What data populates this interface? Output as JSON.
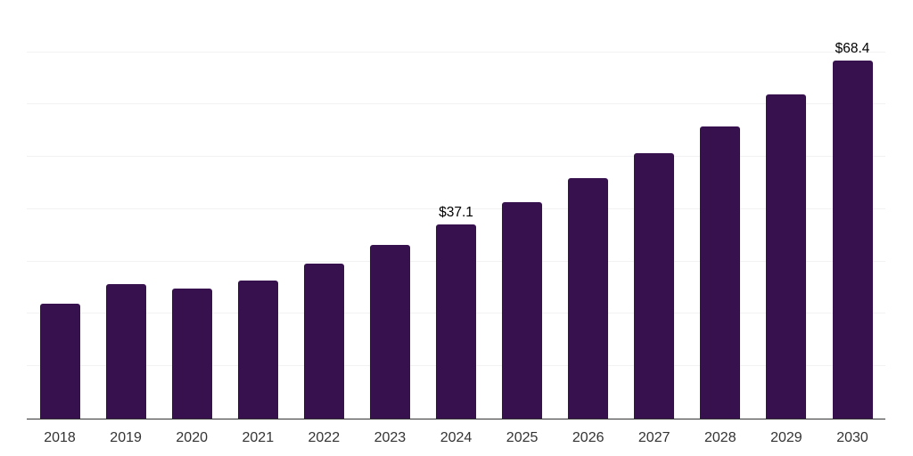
{
  "chart_data": {
    "type": "bar",
    "categories": [
      "2018",
      "2019",
      "2020",
      "2021",
      "2022",
      "2023",
      "2024",
      "2025",
      "2026",
      "2027",
      "2028",
      "2029",
      "2030"
    ],
    "values": [
      21.9,
      25.7,
      24.9,
      26.4,
      29.7,
      33.2,
      37.1,
      41.4,
      45.9,
      50.8,
      55.8,
      62.0,
      68.4
    ],
    "data_labels": [
      "",
      "",
      "",
      "",
      "",
      "",
      "$37.1",
      "",
      "",
      "",
      "",
      "",
      "$68.4"
    ],
    "ylim": [
      0,
      80
    ],
    "grid_step": 10,
    "grid": true,
    "legend": "none",
    "y_tick_labels": "none",
    "colors": {
      "bar": "#36114D",
      "axis": "#333333",
      "gridline": "#f2f2f2",
      "tick_label": "#333333",
      "data_label": "#000000",
      "background": "#ffffff"
    }
  }
}
